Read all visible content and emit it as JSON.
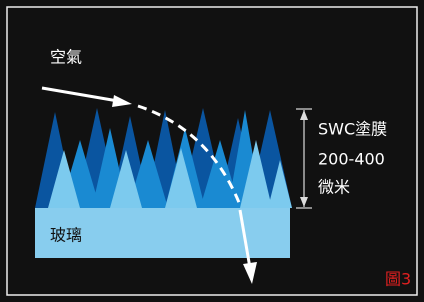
{
  "labels": {
    "air": "空氣",
    "coating": "SWC塗膜",
    "thickness": "200-400",
    "unit": "微米",
    "glass": "玻璃",
    "figure": "圖3"
  }
}
